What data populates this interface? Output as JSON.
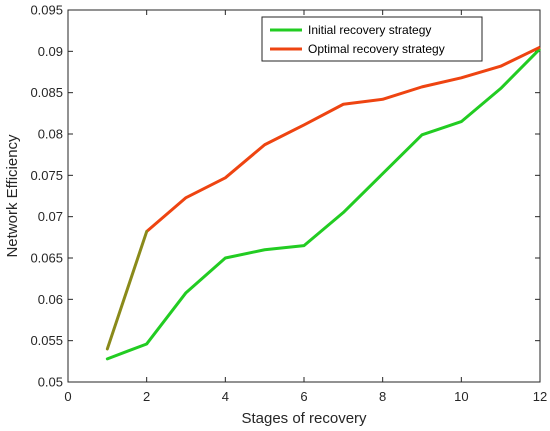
{
  "chart_data": {
    "type": "line",
    "title": "",
    "xlabel": "Stages of recovery",
    "ylabel": "Network Efficiency",
    "xlim": [
      0,
      12
    ],
    "ylim": [
      0.05,
      0.095
    ],
    "x_ticks": [
      "0",
      "2",
      "4",
      "6",
      "8",
      "10",
      "12"
    ],
    "y_ticks": [
      "0.05",
      "0.055",
      "0.06",
      "0.065",
      "0.07",
      "0.075",
      "0.08",
      "0.085",
      "0.09",
      "0.095"
    ],
    "x": [
      1,
      2,
      3,
      4,
      5,
      6,
      7,
      8,
      9,
      10,
      11,
      12
    ],
    "series": [
      {
        "name": "Initial recovery strategy",
        "color": "#22cc22",
        "values": [
          0.0528,
          0.0546,
          0.0608,
          0.065,
          0.066,
          0.0665,
          0.0705,
          0.0752,
          0.0799,
          0.0815,
          0.0855,
          0.0903
        ]
      },
      {
        "name": "Optimal recovery strategy",
        "color": "#ee4411",
        "values": [
          0.054,
          0.0682,
          0.0723,
          0.0747,
          0.0787,
          0.0811,
          0.0836,
          0.0842,
          0.0857,
          0.0868,
          0.0882,
          0.0905
        ]
      }
    ],
    "overlap_color": "#8a8a1a",
    "grid": false,
    "legend_position": "top-right"
  }
}
